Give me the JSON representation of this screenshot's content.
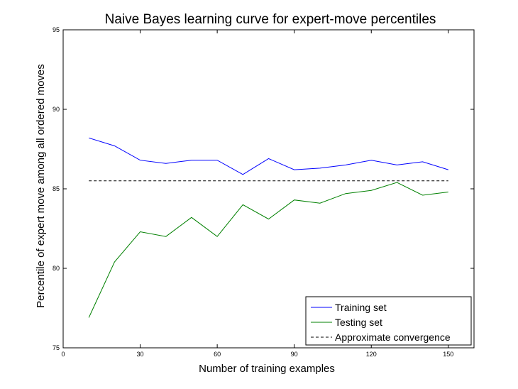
{
  "chart_data": {
    "type": "line",
    "title": "Naive Bayes learning curve for expert-move percentiles",
    "xlabel": "Number of training examples",
    "ylabel": "Percentile of expert move among all ordered moves",
    "xlim": [
      0,
      160
    ],
    "ylim": [
      75,
      95
    ],
    "xticks": [
      0,
      30,
      60,
      90,
      120,
      150
    ],
    "yticks": [
      75,
      80,
      85,
      90,
      95
    ],
    "grid": false,
    "legend_position": "bottom-right",
    "x": [
      10,
      20,
      30,
      40,
      50,
      60,
      70,
      80,
      90,
      100,
      110,
      120,
      130,
      140,
      150
    ],
    "series": [
      {
        "name": "Training set",
        "color": "#0000ff",
        "style": "solid",
        "values": [
          88.2,
          87.7,
          86.8,
          86.6,
          86.8,
          86.8,
          85.9,
          86.9,
          86.2,
          86.3,
          86.5,
          86.8,
          86.5,
          86.7,
          86.2
        ]
      },
      {
        "name": "Testing set",
        "color": "#008000",
        "style": "solid",
        "values": [
          76.9,
          80.4,
          82.3,
          82.0,
          83.2,
          82.0,
          84.0,
          83.1,
          84.3,
          84.1,
          84.7,
          84.9,
          85.4,
          84.6,
          84.8
        ]
      },
      {
        "name": "Approximate convergence",
        "color": "#000000",
        "style": "dashed",
        "x": [
          10,
          150
        ],
        "values": [
          85.5,
          85.5
        ]
      }
    ]
  }
}
